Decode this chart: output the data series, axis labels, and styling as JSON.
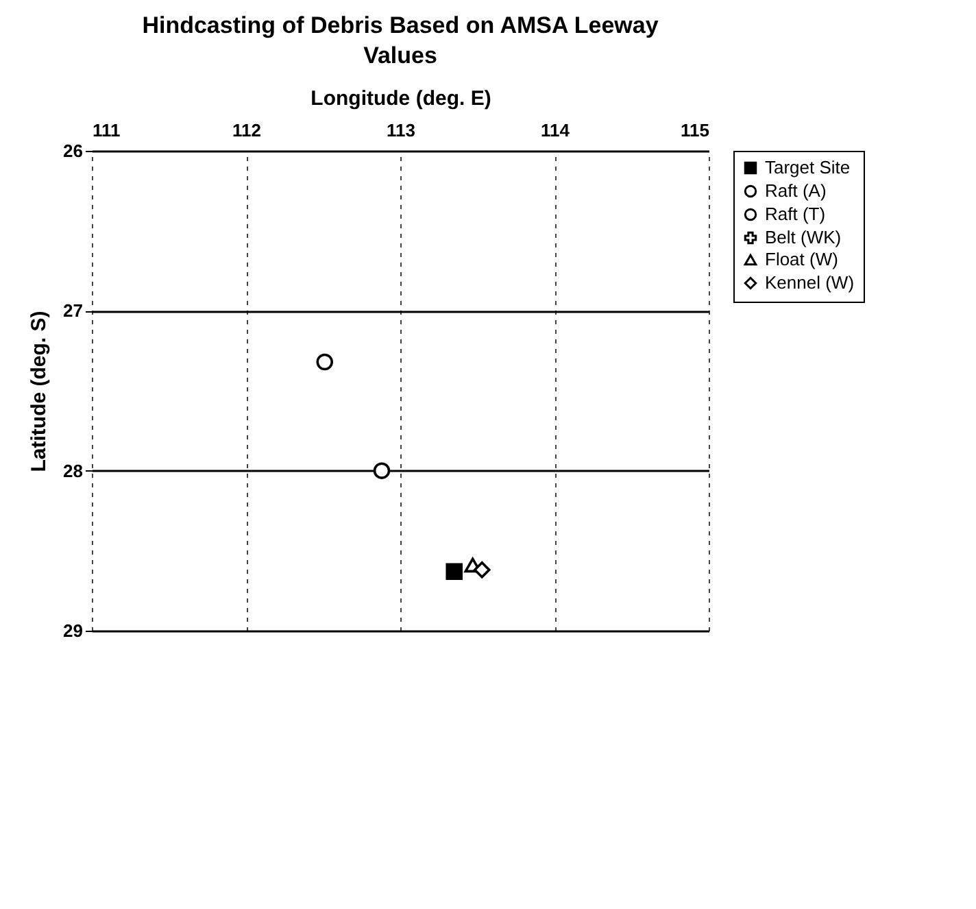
{
  "chart_data": {
    "type": "scatter",
    "title": "Hindcasting of Debris Based on AMSA Leeway Values",
    "xlabel": "Longitude (deg. E)",
    "ylabel": "Latitude (deg. S)",
    "xlim": [
      111,
      115
    ],
    "xticks": [
      111,
      112,
      113,
      114,
      115
    ],
    "ylim": [
      29,
      26
    ],
    "yticks": [
      26,
      27,
      28,
      29
    ],
    "grid": true,
    "legend": "right",
    "series": [
      {
        "name": "Target Site",
        "color": "#000000",
        "marker": "square",
        "x": [
          113.35
        ],
        "values": [
          28.63
        ]
      },
      {
        "name": "Raft (A)",
        "color": "#000000",
        "marker": "circle",
        "x": [
          112.51
        ],
        "values": [
          27.32
        ]
      },
      {
        "name": "Raft (T)",
        "color": "#000000",
        "marker": "circle",
        "x": [
          112.88
        ],
        "values": [
          28.0
        ]
      },
      {
        "name": "Belt (WK)",
        "color": "#000000",
        "marker": "cross",
        "x": [
          null
        ],
        "values": [
          null
        ]
      },
      {
        "name": "Float (W)",
        "color": "#000000",
        "marker": "triangle",
        "x": [
          113.47
        ],
        "values": [
          28.59
        ]
      },
      {
        "name": "Kennel (W)",
        "color": "#000000",
        "marker": "diamond",
        "x": [
          113.53
        ],
        "values": [
          28.62
        ]
      }
    ]
  }
}
